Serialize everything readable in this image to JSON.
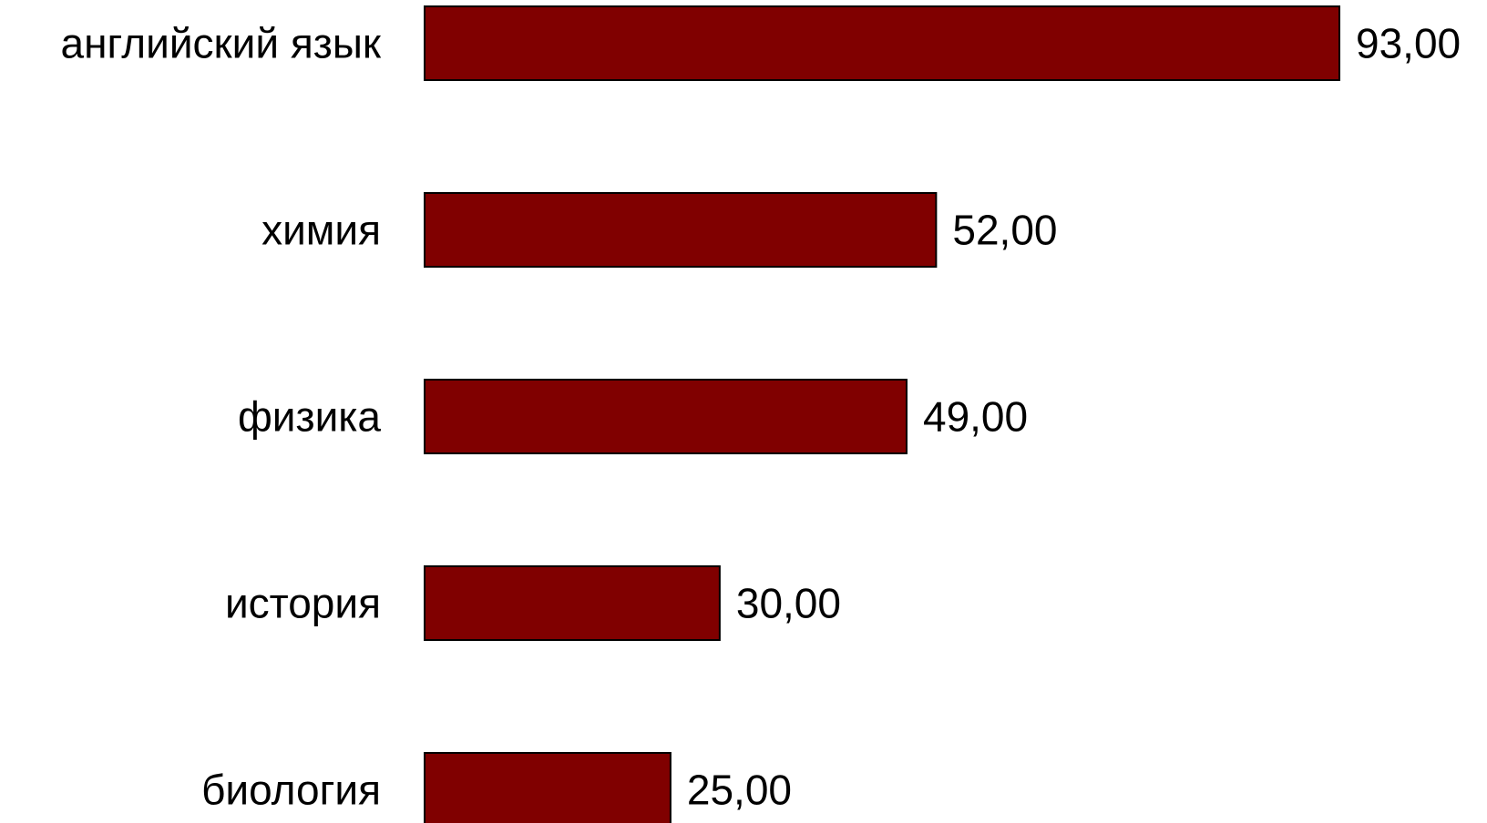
{
  "chart_data": {
    "type": "bar",
    "orientation": "horizontal",
    "categories": [
      "английский язык",
      "химия",
      "физика",
      "история",
      "биология"
    ],
    "values": [
      93,
      52,
      49,
      30,
      25
    ],
    "value_labels": [
      "93,00",
      "52,00",
      "49,00",
      "30,00",
      "25,00"
    ],
    "title": "",
    "xlabel": "",
    "ylabel": "",
    "xlim": [
      0,
      93
    ],
    "grid": false,
    "legend": "none",
    "bar_color": "#800000",
    "bar_edge_color": "#000000"
  }
}
